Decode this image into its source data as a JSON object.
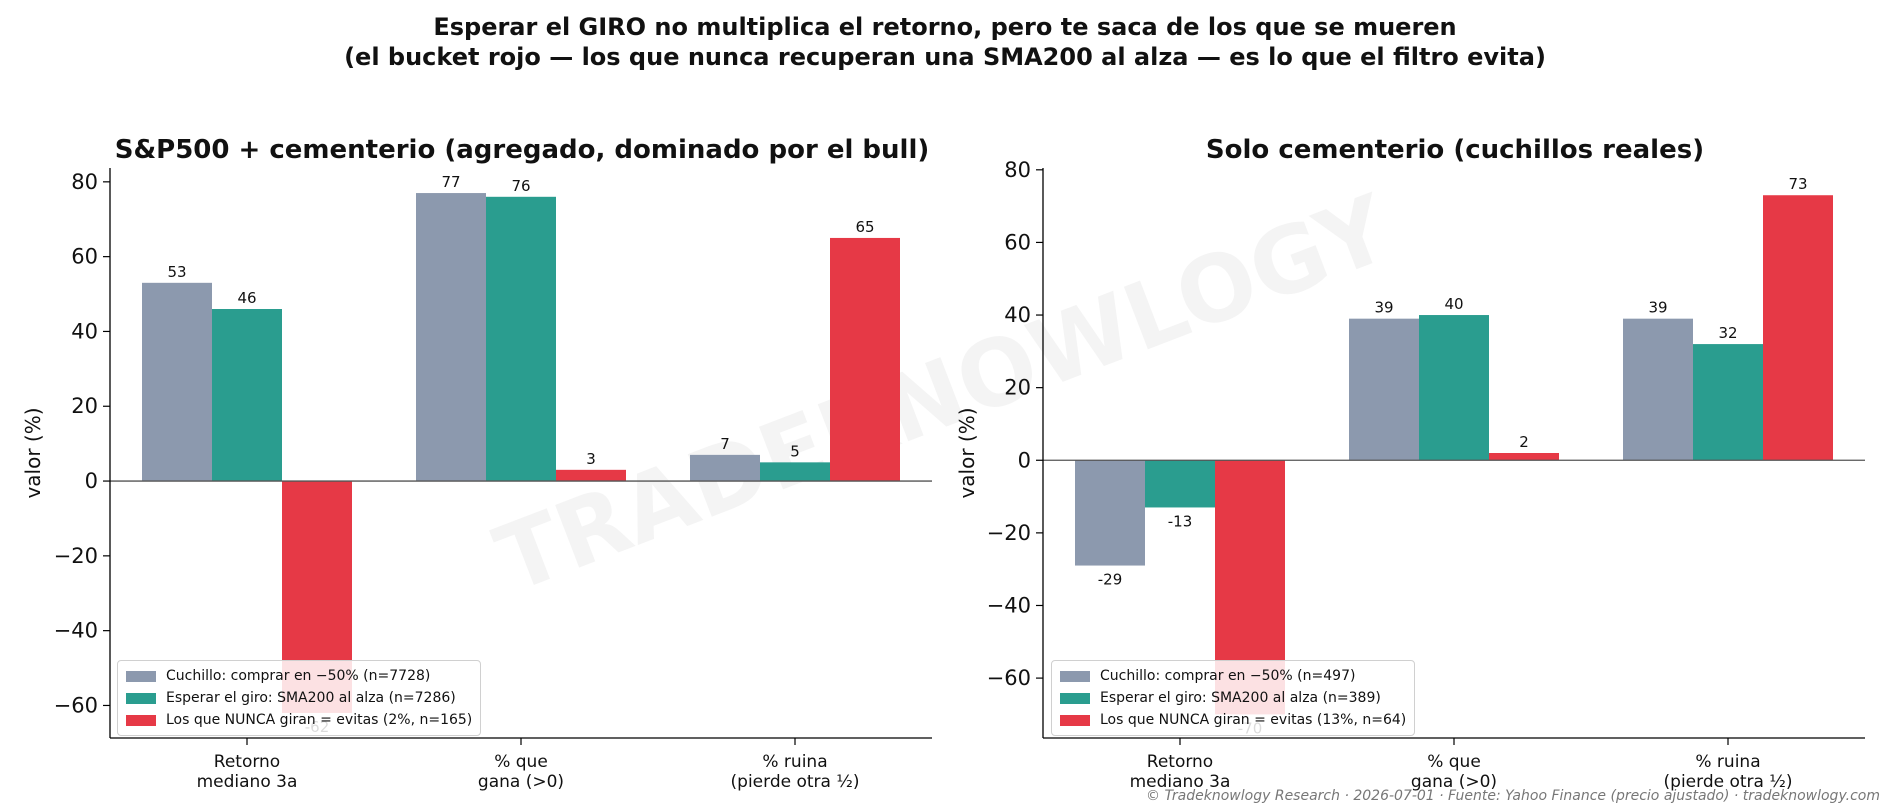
{
  "title_lines": [
    "Esperar el GIRO no multiplica el retorno, pero te saca de los que se mueren",
    "(el bucket rojo — los que nunca recuperan una SMA200 al alza — es lo que el filtro evita)"
  ],
  "watermark": "TRADEKNOWLOGY",
  "footer": "© Tradeknowlogy Research   ·   2026-07-01   ·   Fuente: Yahoo Finance (precio ajustado)   ·   tradeknowlogy.com",
  "colors": {
    "cuchillo": "#8c99ae",
    "giro": "#2a9d8f",
    "nunca": "#e63946"
  },
  "chart_data": [
    {
      "type": "bar",
      "title": "S&P500 + cementerio (agregado, dominado por el bull)",
      "ylabel": "valor (%)",
      "ylim": [
        -68.7,
        83.7
      ],
      "yticks": [
        -60,
        -40,
        -20,
        0,
        20,
        40,
        60,
        80
      ],
      "categories": [
        "Retorno\nmediano 3a",
        "% que\ngana (>0)",
        "% ruina\n(pierde otra ½)"
      ],
      "series": [
        {
          "name": "Cuchillo: comprar en −50% (n=7728)",
          "color": "#8c99ae",
          "values": [
            53,
            77,
            7
          ]
        },
        {
          "name": "Esperar el giro: SMA200 al alza (n=7286)",
          "color": "#2a9d8f",
          "values": [
            46,
            76,
            5
          ]
        },
        {
          "name": "Los que NUNCA giran = evitas (2%, n=165)",
          "color": "#e63946",
          "values": [
            -62,
            3,
            65
          ]
        }
      ],
      "legend": "lower-left"
    },
    {
      "type": "bar",
      "title": "Solo cementerio (cuchillos reales)",
      "ylabel": "valor (%)",
      "ylim": [
        -76.5,
        80.5
      ],
      "yticks": [
        -60,
        -40,
        -20,
        0,
        20,
        40,
        60,
        80
      ],
      "categories": [
        "Retorno\nmediano 3a",
        "% que\ngana (>0)",
        "% ruina\n(pierde otra ½)"
      ],
      "series": [
        {
          "name": "Cuchillo: comprar en −50% (n=497)",
          "color": "#8c99ae",
          "values": [
            -29,
            39,
            39
          ]
        },
        {
          "name": "Esperar el giro: SMA200 al alza (n=389)",
          "color": "#2a9d8f",
          "values": [
            -13,
            40,
            32
          ]
        },
        {
          "name": "Los que NUNCA giran = evitas (13%, n=64)",
          "color": "#e63946",
          "values": [
            -70,
            2,
            73
          ]
        }
      ],
      "legend": "lower-left"
    }
  ]
}
